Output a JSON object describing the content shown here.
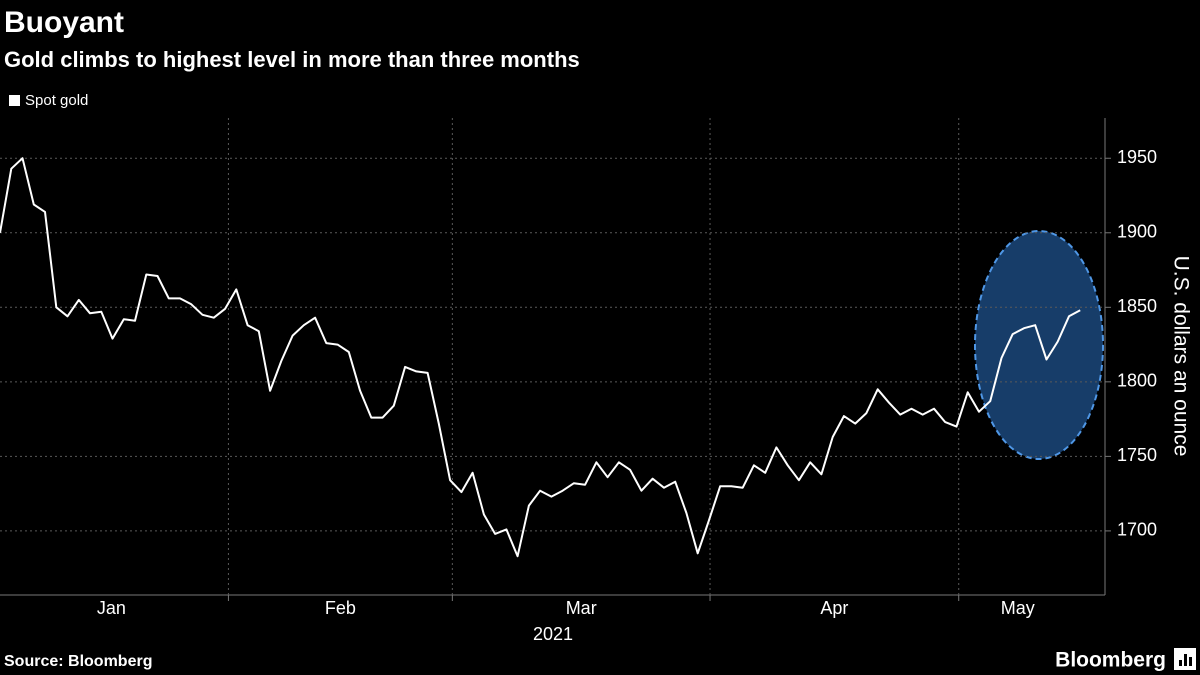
{
  "chart_data": {
    "type": "line",
    "title": "Buoyant",
    "subtitle": "Gold climbs to highest level in more than three months",
    "ylabel": "U.S. dollars an ounce",
    "xlabel": "2021",
    "source": "Source: Bloomberg",
    "brand": "Bloomberg",
    "x": [
      0,
      1,
      2,
      3,
      4,
      5,
      6,
      7,
      8,
      9,
      10,
      11,
      12,
      13,
      14,
      15,
      16,
      17,
      18,
      19,
      20,
      21,
      22,
      23,
      24,
      25,
      26,
      27,
      28,
      29,
      30,
      31,
      32,
      33,
      34,
      35,
      36,
      37,
      38,
      39,
      40,
      41,
      42,
      43,
      44,
      45,
      46,
      47,
      48,
      49,
      50,
      51,
      52,
      53,
      54,
      55,
      56,
      57,
      58,
      59,
      60,
      61,
      62,
      63,
      64,
      65,
      66,
      67,
      68,
      69,
      70,
      71,
      72,
      73,
      74,
      75,
      76,
      77,
      78,
      79,
      80,
      81,
      82,
      83,
      84,
      85,
      86,
      87,
      88,
      89,
      90,
      91,
      92,
      93,
      94,
      95,
      96
    ],
    "series": [
      {
        "name": "Spot gold",
        "color": "#ffffff",
        "values": [
          1900,
          1943,
          1950,
          1919,
          1914,
          1850,
          1844,
          1855,
          1846,
          1847,
          1829,
          1842,
          1841,
          1872,
          1871,
          1856,
          1856,
          1852,
          1845,
          1843,
          1849,
          1862,
          1838,
          1834,
          1794,
          1814,
          1831,
          1838,
          1843,
          1826,
          1825,
          1820,
          1794,
          1776,
          1776,
          1784,
          1810,
          1807,
          1806,
          1772,
          1734,
          1726,
          1739,
          1711,
          1698,
          1701,
          1683,
          1717,
          1727,
          1723,
          1727,
          1732,
          1731,
          1746,
          1736,
          1746,
          1741,
          1727,
          1735,
          1729,
          1733,
          1712,
          1685,
          1707,
          1730,
          1730,
          1729,
          1744,
          1739,
          1756,
          1744,
          1734,
          1746,
          1738,
          1763,
          1777,
          1772,
          1779,
          1795,
          1786,
          1778,
          1782,
          1778,
          1782,
          1773,
          1770,
          1793,
          1780,
          1787,
          1816,
          1832,
          1836,
          1838,
          1815,
          1827,
          1844,
          1848
        ]
      }
    ],
    "xlim": [
      0,
      98.2
    ],
    "xticks": [
      {
        "value": -0.5,
        "label": "Jan"
      },
      {
        "value": 20.3,
        "label": "Feb"
      },
      {
        "value": 40.2,
        "label": "Mar"
      },
      {
        "value": 63.1,
        "label": "Apr"
      },
      {
        "value": 85.2,
        "label": "May"
      }
    ],
    "ylim": [
      1657,
      1977
    ],
    "yticks": [
      1700,
      1750,
      1800,
      1850,
      1900,
      1950
    ],
    "grid": true,
    "legend": "top-left"
  }
}
